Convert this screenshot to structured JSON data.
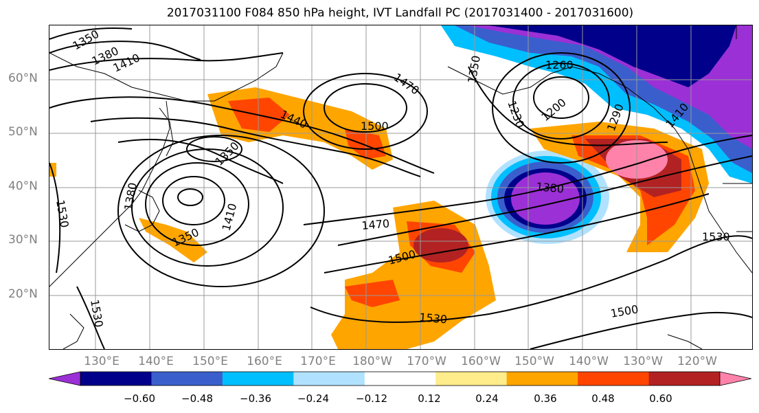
{
  "title": "2017031100 F084 850 hPa height, IVT Landfall PC (2017031400 - 2017031600)",
  "lat_labels": [
    "60°N",
    "50°N",
    "40°N",
    "30°N",
    "20°N"
  ],
  "lon_labels": [
    "130°E",
    "140°E",
    "150°E",
    "160°E",
    "170°E",
    "180°W",
    "170°W",
    "160°W",
    "150°W",
    "140°W",
    "130°W",
    "120°W"
  ],
  "contour_labels": [
    "1350",
    "1380",
    "1410",
    "1470",
    "1350",
    "1260",
    "1440",
    "1500",
    "1230",
    "1200",
    "1290",
    "1410",
    "1350",
    "1380",
    "1380",
    "1410",
    "1470",
    "1350",
    "1530",
    "1500",
    "1530",
    "1530",
    "1530",
    "1500"
  ],
  "colorbar": {
    "colors": [
      "#9b30d6",
      "#00008b",
      "#3a5fcd",
      "#00bfff",
      "#b0e2ff",
      "#ffffff",
      "#ffec8b",
      "#ffa500",
      "#ff4500",
      "#b22222",
      "#ff82ab"
    ],
    "tick_labels": [
      "−0.60",
      "−0.48",
      "−0.36",
      "−0.24",
      "−0.12",
      "0.12",
      "0.24",
      "0.36",
      "0.48",
      "0.60"
    ]
  }
}
